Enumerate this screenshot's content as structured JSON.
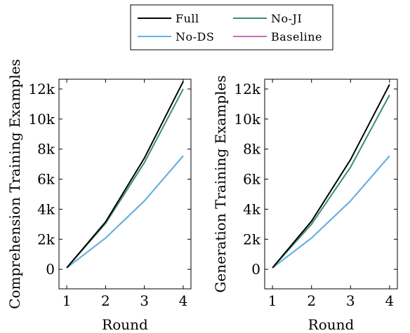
{
  "legend": {
    "entries": [
      {
        "name": "Full",
        "color": "#000000"
      },
      {
        "name": "No-JI",
        "color": "#3a8f6c"
      },
      {
        "name": "No-DS",
        "color": "#5fb3e6"
      },
      {
        "name": "Baseline",
        "color": "#c573b8"
      }
    ]
  },
  "chart_data": [
    {
      "type": "line",
      "title": "",
      "xlabel": "Round",
      "ylabel": "Comprehension Training Examples",
      "x": [
        1,
        2,
        3,
        4
      ],
      "xticks": [
        "1",
        "2",
        "3",
        "4"
      ],
      "yticks": [
        "0",
        "2k",
        "4k",
        "6k",
        "8k",
        "10k",
        "12k"
      ],
      "xlim": [
        0.8,
        4.2
      ],
      "ylim": [
        -1300,
        12650
      ],
      "grid": false,
      "legend_position": "top-center",
      "series": [
        {
          "name": "Full",
          "color": "#000000",
          "values": [
            100,
            3150,
            7400,
            12500
          ]
        },
        {
          "name": "No-JI",
          "color": "#3a8f6c",
          "values": [
            100,
            3050,
            7100,
            12000
          ]
        },
        {
          "name": "No-DS",
          "color": "#5fb3e6",
          "values": [
            100,
            2080,
            4550,
            7550
          ]
        },
        {
          "name": "Baseline",
          "color": "#c573b8",
          "values": [
            100,
            2080,
            4550,
            7550
          ]
        }
      ]
    },
    {
      "type": "line",
      "title": "",
      "xlabel": "Round",
      "ylabel": "Generation Training Examples",
      "x": [
        1,
        2,
        3,
        4
      ],
      "xticks": [
        "1",
        "2",
        "3",
        "4"
      ],
      "yticks": [
        "0",
        "2k",
        "4k",
        "6k",
        "8k",
        "10k",
        "12k"
      ],
      "xlim": [
        0.8,
        4.2
      ],
      "ylim": [
        -1300,
        12650
      ],
      "grid": false,
      "legend_position": "top-center",
      "series": [
        {
          "name": "Full",
          "color": "#000000",
          "values": [
            100,
            3200,
            7300,
            12300
          ]
        },
        {
          "name": "No-JI",
          "color": "#3a8f6c",
          "values": [
            100,
            3000,
            6800,
            11600
          ]
        },
        {
          "name": "No-DS",
          "color": "#5fb3e6",
          "values": [
            100,
            2080,
            4550,
            7550
          ]
        },
        {
          "name": "Baseline",
          "color": "#c573b8",
          "values": [
            100,
            2080,
            4550,
            7550
          ]
        }
      ]
    }
  ]
}
